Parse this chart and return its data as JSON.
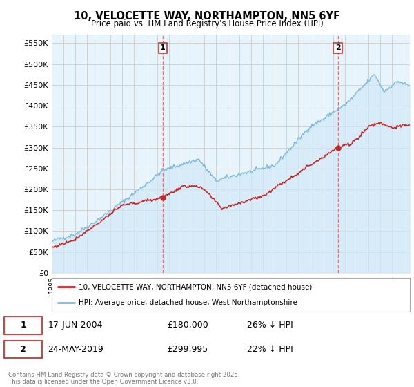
{
  "title": "10, VELOCETTE WAY, NORTHAMPTON, NN5 6YF",
  "subtitle": "Price paid vs. HM Land Registry's House Price Index (HPI)",
  "ylabel_ticks": [
    "£0",
    "£50K",
    "£100K",
    "£150K",
    "£200K",
    "£250K",
    "£300K",
    "£350K",
    "£400K",
    "£450K",
    "£500K",
    "£550K"
  ],
  "ylabel_values": [
    0,
    50000,
    100000,
    150000,
    200000,
    250000,
    300000,
    350000,
    400000,
    450000,
    500000,
    550000
  ],
  "hpi_color": "#7ab8e0",
  "hpi_fill_color": "#d0e8f7",
  "price_color": "#cc2222",
  "dashed_color": "#dd6666",
  "background_color": "#ffffff",
  "grid_color": "#cccccc",
  "transaction1_date": "17-JUN-2004",
  "transaction1_price": 180000,
  "transaction1_label": "£180,000",
  "transaction1_hpi_diff": "26% ↓ HPI",
  "transaction1_year": 2004.46,
  "transaction2_date": "24-MAY-2019",
  "transaction2_price": 299995,
  "transaction2_label": "£299,995",
  "transaction2_hpi_diff": "22% ↓ HPI",
  "transaction2_year": 2019.37,
  "legend_line1": "10, VELOCETTE WAY, NORTHAMPTON, NN5 6YF (detached house)",
  "legend_line2": "HPI: Average price, detached house, West Northamptonshire",
  "footer": "Contains HM Land Registry data © Crown copyright and database right 2025.\nThis data is licensed under the Open Government Licence v3.0.",
  "xmin": 1995.0,
  "xmax": 2025.5,
  "ymin": 0,
  "ymax": 570000
}
